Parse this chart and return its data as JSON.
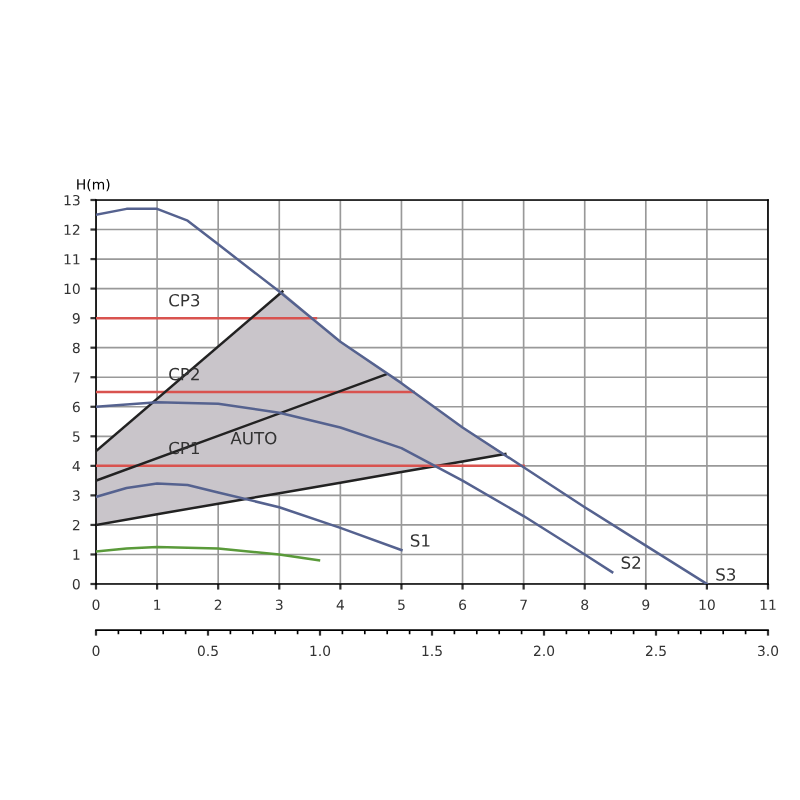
{
  "chart_data": {
    "type": "line",
    "ylabel": "H(m)",
    "xlim": [
      0,
      11
    ],
    "xticks": [
      0,
      1,
      2,
      3,
      4,
      5,
      6,
      7,
      8,
      9,
      10,
      11
    ],
    "ylim": [
      0,
      13
    ],
    "yticks": [
      0,
      1,
      2,
      3,
      4,
      5,
      6,
      7,
      8,
      9,
      10,
      11,
      12,
      13
    ],
    "x2lim": [
      0,
      3.0
    ],
    "x2ticks": [
      0,
      0.5,
      {
        "value": 1,
        "label": "1.0"
      },
      1.5,
      {
        "value": 2,
        "label": "2.0"
      },
      2.5,
      {
        "value": 3,
        "label": "3.0"
      }
    ],
    "grid": true,
    "marker": "none",
    "line_style": "solid",
    "series": [
      {
        "color": "#222222",
        "x": [
          0,
          1,
          2,
          3.05,
          4,
          5,
          6,
          6.7
        ],
        "values": [
          2,
          2.36,
          2.72,
          3.09,
          3.43,
          3.79,
          4.15,
          4.4
        ],
        "lower": [
          2,
          2.36,
          2.72,
          3.09,
          3.43,
          3.79,
          4.15,
          4.4
        ],
        "upper": [
          4.5,
          6.27,
          8.05,
          9.9,
          8.2,
          6.8,
          5.3,
          4.4
        ]
      },
      {
        "name": "CP3",
        "color": "#d9534f",
        "x": [
          0,
          3.6
        ],
        "values": [
          9,
          9
        ]
      },
      {
        "name": "CP2",
        "color": "#d9534f",
        "x": [
          0,
          5.2
        ],
        "values": [
          6.5,
          6.5
        ]
      },
      {
        "name": "CP1",
        "color": "#d9534f",
        "x": [
          0,
          7.0
        ],
        "values": [
          4,
          4
        ]
      },
      {
        "color": "#222222",
        "x": [
          0,
          3.05
        ],
        "values": [
          4.5,
          9.9
        ]
      },
      {
        "color": "#222222",
        "x": [
          0,
          4.75
        ],
        "values": [
          3.5,
          7.1
        ]
      },
      {
        "name": "S3",
        "color": "#55628f",
        "x": [
          0,
          0.5,
          1,
          1.5,
          2,
          2.5,
          3,
          4,
          5,
          6,
          7,
          8,
          9,
          10
        ],
        "values": [
          12.5,
          12.7,
          12.7,
          12.3,
          11.5,
          10.7,
          9.9,
          8.2,
          6.8,
          5.3,
          3.95,
          2.6,
          1.3,
          0
        ]
      },
      {
        "name": "S2",
        "color": "#55628f",
        "x": [
          0,
          1,
          2,
          3,
          4,
          5,
          6,
          7,
          8,
          8.45
        ],
        "values": [
          6.0,
          6.15,
          6.1,
          5.8,
          5.3,
          4.6,
          3.5,
          2.3,
          1.0,
          0.4
        ]
      },
      {
        "name": "S1",
        "color": "#55628f",
        "x": [
          0,
          0.5,
          1,
          1.5,
          2,
          3,
          4,
          5
        ],
        "values": [
          2.95,
          3.25,
          3.4,
          3.35,
          3.1,
          2.6,
          1.9,
          1.15
        ]
      },
      {
        "color": "#5a9a3a",
        "x": [
          0,
          0.5,
          1,
          2,
          3,
          3.65
        ],
        "values": [
          1.1,
          1.2,
          1.25,
          1.2,
          1.0,
          0.8
        ]
      }
    ],
    "annotations": [
      "AUTO"
    ]
  }
}
